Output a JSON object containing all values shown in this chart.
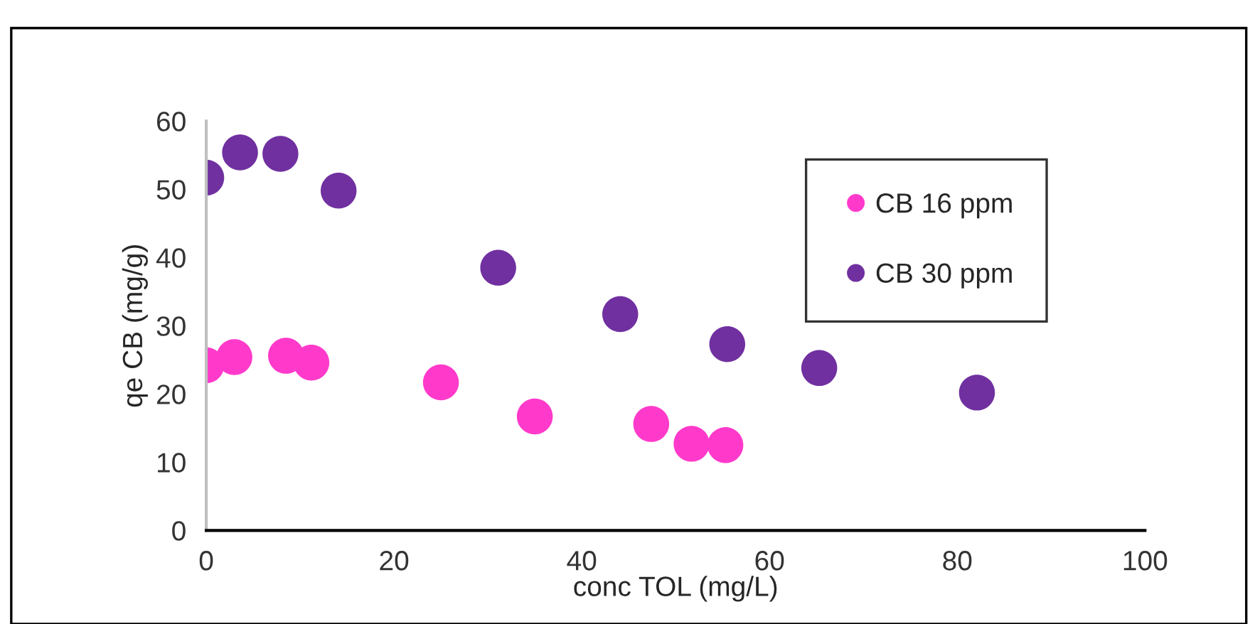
{
  "chart_data": {
    "type": "scatter",
    "xlabel": "conc TOL (mg/L)",
    "ylabel": "qe CB (mg/g)",
    "xlim": [
      0,
      100
    ],
    "xticks": [
      0,
      20,
      40,
      60,
      80,
      100
    ],
    "ylim": [
      0,
      60
    ],
    "yticks": [
      0,
      10,
      20,
      30,
      40,
      50,
      60
    ],
    "grid": false,
    "legend": "top right",
    "marker": "circle",
    "series": [
      {
        "name": "CB 16 ppm",
        "color": "#ff3acb",
        "x": [
          0,
          3.0,
          8.5,
          11.2,
          25,
          35,
          47.4,
          51.7,
          55.3
        ],
        "values": [
          24.2,
          25.4,
          25.6,
          24.6,
          21.7,
          16.7,
          15.6,
          12.7,
          12.5
        ]
      },
      {
        "name": "CB 30 ppm",
        "color": "#7030a0",
        "x": [
          0,
          3.6,
          7.9,
          14.1,
          31.1,
          44.1,
          55.5,
          65.3,
          82.1
        ],
        "values": [
          51.7,
          55.4,
          55.2,
          49.8,
          38.5,
          31.7,
          27.3,
          23.8,
          20.2
        ]
      }
    ]
  }
}
